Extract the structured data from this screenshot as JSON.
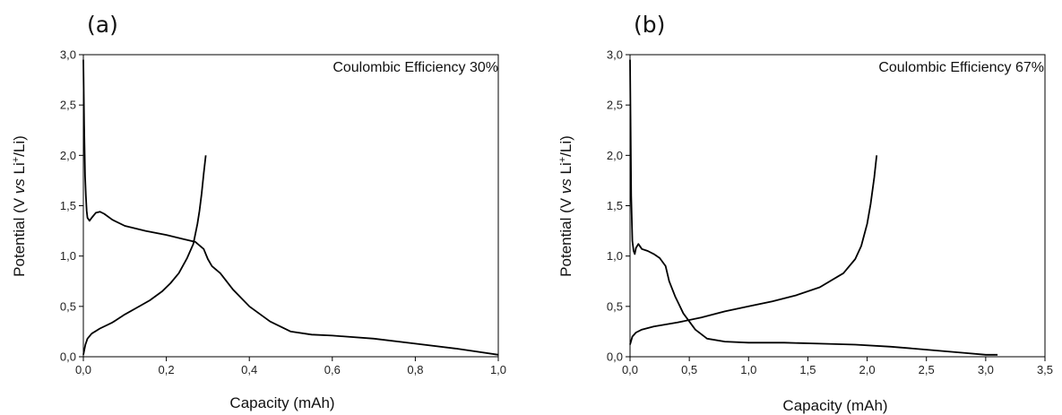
{
  "chart_data": [
    {
      "type": "line",
      "panel": "(a)",
      "annotation": "Coulombic Efficiency 30%",
      "xlabel": "Capacity (mAh)",
      "ylabel_parts": [
        "Potential (V ",
        "vs",
        " Li",
        "+",
        "/Li)"
      ],
      "xlim": [
        0,
        1.0
      ],
      "ylim": [
        0,
        3.0
      ],
      "xticks": [
        "0,0",
        "0,2",
        "0,4",
        "0,6",
        "0,8",
        "1,0"
      ],
      "yticks": [
        "0,0",
        "0,5",
        "1,0",
        "1,5",
        "2,0",
        "2,5",
        "3,0"
      ],
      "xtick_values": [
        0,
        0.2,
        0.4,
        0.6,
        0.8,
        1.0
      ],
      "ytick_values": [
        0,
        0.5,
        1.0,
        1.5,
        2.0,
        2.5,
        3.0
      ],
      "series": [
        {
          "x": [
            0,
            0.002,
            0.004,
            0.006,
            0.008,
            0.01,
            0.015,
            0.02,
            0.03,
            0.04,
            0.05,
            0.07,
            0.1,
            0.15,
            0.2,
            0.24,
            0.27,
            0.29,
            0.3,
            0.31,
            0.33,
            0.36,
            0.4,
            0.45,
            0.5,
            0.55,
            0.6,
            0.7,
            0.8,
            0.9,
            0.95,
            1.0
          ],
          "y": [
            2.95,
            2.3,
            1.8,
            1.6,
            1.45,
            1.38,
            1.35,
            1.38,
            1.43,
            1.44,
            1.42,
            1.36,
            1.3,
            1.25,
            1.21,
            1.17,
            1.14,
            1.07,
            0.97,
            0.9,
            0.83,
            0.67,
            0.5,
            0.35,
            0.25,
            0.22,
            0.21,
            0.18,
            0.13,
            0.08,
            0.05,
            0.02
          ]
        },
        {
          "x": [
            0,
            0.005,
            0.01,
            0.02,
            0.04,
            0.07,
            0.1,
            0.13,
            0.16,
            0.19,
            0.21,
            0.23,
            0.25,
            0.265,
            0.275,
            0.28,
            0.285,
            0.29,
            0.295
          ],
          "y": [
            0.02,
            0.12,
            0.18,
            0.23,
            0.28,
            0.34,
            0.42,
            0.49,
            0.56,
            0.65,
            0.73,
            0.83,
            0.98,
            1.12,
            1.32,
            1.45,
            1.62,
            1.82,
            2.0
          ]
        }
      ]
    },
    {
      "type": "line",
      "panel": "(b)",
      "annotation": "Coulombic Efficiency 67%",
      "xlabel": "Capacity (mAh)",
      "ylabel_parts": [
        "Potential (V ",
        "vs",
        " Li",
        "+",
        "/Li)"
      ],
      "xlim": [
        0,
        3.5
      ],
      "ylim": [
        0,
        3.0
      ],
      "xticks": [
        "0,0",
        "0,5",
        "1,0",
        "1,5",
        "2,0",
        "2,5",
        "3,0",
        "3,5"
      ],
      "yticks": [
        "0,0",
        "0,5",
        "1,0",
        "1,5",
        "2,0",
        "2,5",
        "3,0"
      ],
      "xtick_values": [
        0,
        0.5,
        1.0,
        1.5,
        2.0,
        2.5,
        3.0,
        3.5
      ],
      "ytick_values": [
        0,
        0.5,
        1.0,
        1.5,
        2.0,
        2.5,
        3.0
      ],
      "series": [
        {
          "x": [
            0,
            0.01,
            0.02,
            0.03,
            0.04,
            0.05,
            0.07,
            0.1,
            0.15,
            0.2,
            0.25,
            0.3,
            0.33,
            0.38,
            0.45,
            0.55,
            0.65,
            0.8,
            1.0,
            1.3,
            1.6,
            1.9,
            2.2,
            2.5,
            2.8,
            3.0,
            3.1
          ],
          "y": [
            2.95,
            1.6,
            1.15,
            1.05,
            1.02,
            1.08,
            1.12,
            1.07,
            1.05,
            1.02,
            0.98,
            0.9,
            0.75,
            0.6,
            0.43,
            0.27,
            0.18,
            0.15,
            0.14,
            0.14,
            0.13,
            0.12,
            0.1,
            0.07,
            0.04,
            0.02,
            0.02
          ]
        },
        {
          "x": [
            0,
            0.02,
            0.05,
            0.1,
            0.2,
            0.4,
            0.6,
            0.8,
            1.0,
            1.2,
            1.4,
            1.6,
            1.8,
            1.9,
            1.95,
            2.0,
            2.03,
            2.06,
            2.08
          ],
          "y": [
            0.12,
            0.2,
            0.24,
            0.27,
            0.3,
            0.34,
            0.39,
            0.45,
            0.5,
            0.55,
            0.61,
            0.69,
            0.83,
            0.97,
            1.1,
            1.32,
            1.52,
            1.78,
            2.0
          ]
        }
      ]
    }
  ]
}
